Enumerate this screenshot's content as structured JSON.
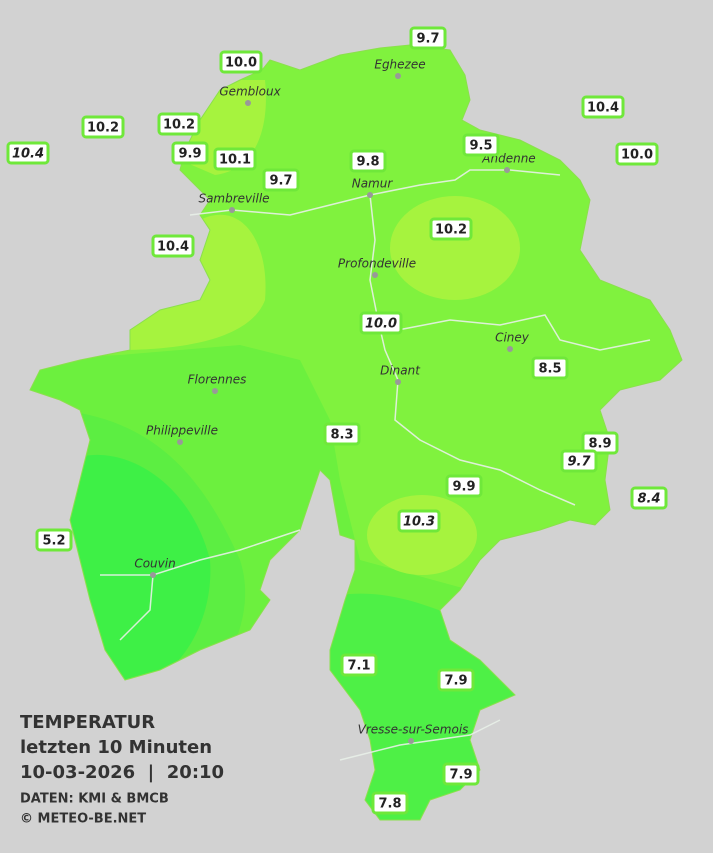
{
  "header": {
    "title": "TEMPERATUR",
    "subtitle": "letzten 10 Minuten",
    "datetime": "10-03-2026  |  20:10",
    "source": "DATEN: KMI & BMCB",
    "copyright": "© METEO-BE.NET"
  },
  "towns": [
    {
      "name": "Eghezee"
    },
    {
      "name": "Gembloux"
    },
    {
      "name": "Andenne"
    },
    {
      "name": "Sambreville"
    },
    {
      "name": "Namur"
    },
    {
      "name": "Profondeville"
    },
    {
      "name": "Ciney"
    },
    {
      "name": "Florennes"
    },
    {
      "name": "Dinant"
    },
    {
      "name": "Philippeville"
    },
    {
      "name": "Couvin"
    },
    {
      "name": "Vresse-sur-Semois"
    }
  ],
  "stations": [
    {
      "label": "9.7"
    },
    {
      "label": "10.0"
    },
    {
      "label": "10.4"
    },
    {
      "label": "10.2"
    },
    {
      "label": "10.2"
    },
    {
      "label": "10.4",
      "italic": true
    },
    {
      "label": "9.9"
    },
    {
      "label": "10.1"
    },
    {
      "label": "9.8"
    },
    {
      "label": "9.5"
    },
    {
      "label": "10.0"
    },
    {
      "label": "9.7"
    },
    {
      "label": "10.2"
    },
    {
      "label": "10.4"
    },
    {
      "label": "10.0",
      "italic": true
    },
    {
      "label": "8.5"
    },
    {
      "label": "8.3"
    },
    {
      "label": "8.9"
    },
    {
      "label": "9.7",
      "italic": true
    },
    {
      "label": "9.9"
    },
    {
      "label": "8.4",
      "italic": true
    },
    {
      "label": "10.3",
      "italic": true
    },
    {
      "label": "5.2"
    },
    {
      "label": "7.1"
    },
    {
      "label": "7.9"
    },
    {
      "label": "7.9"
    },
    {
      "label": "7.8"
    }
  ]
}
